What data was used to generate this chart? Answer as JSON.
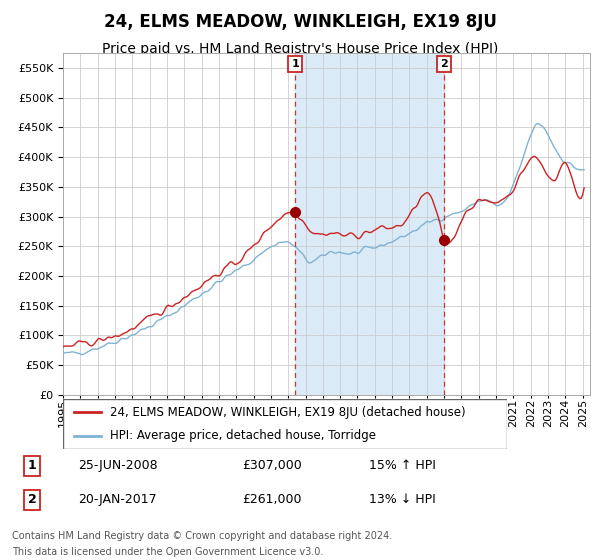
{
  "title": "24, ELMS MEADOW, WINKLEIGH, EX19 8JU",
  "subtitle": "Price paid vs. HM Land Registry's House Price Index (HPI)",
  "legend_entry1": "24, ELMS MEADOW, WINKLEIGH, EX19 8JU (detached house)",
  "legend_entry2": "HPI: Average price, detached house, Torridge",
  "marker1_date_str": "25-JUN-2008",
  "marker1_price": 307000,
  "marker1_pct": "15% ↑ HPI",
  "marker2_date_str": "20-JAN-2017",
  "marker2_price": 261000,
  "marker2_pct": "13% ↓ HPI",
  "footnote1": "Contains HM Land Registry data © Crown copyright and database right 2024.",
  "footnote2": "This data is licensed under the Open Government Licence v3.0.",
  "ylim": [
    0,
    575000
  ],
  "yticks": [
    0,
    50000,
    100000,
    150000,
    200000,
    250000,
    300000,
    350000,
    400000,
    450000,
    500000,
    550000
  ],
  "plot_bg_color": "#ffffff",
  "shaded_region_color": "#daeaf7",
  "grid_color": "#cccccc",
  "hpi_color": "#7fb3d3",
  "price_color": "#cc2222",
  "marker_color": "#990000",
  "vline_color": "#cc3333",
  "box_color": "#cc2222",
  "title_fontsize": 12,
  "subtitle_fontsize": 10,
  "tick_fontsize": 8,
  "legend_fontsize": 8.5,
  "table_fontsize": 9
}
